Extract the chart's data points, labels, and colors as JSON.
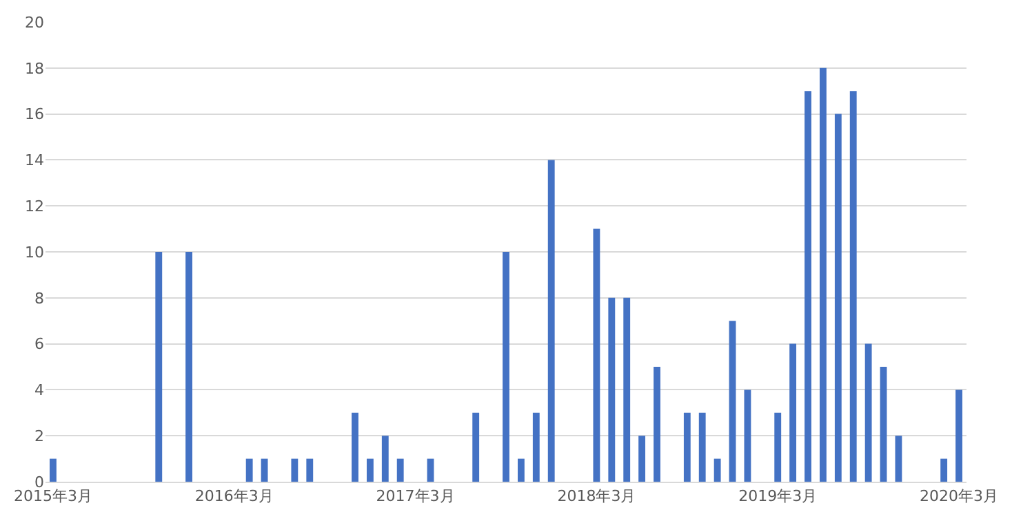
{
  "chart_data": {
    "type": "bar",
    "categories": [
      "2015年3月",
      null,
      null,
      null,
      null,
      null,
      null,
      null,
      null,
      null,
      null,
      null,
      "2016年3月",
      null,
      null,
      null,
      null,
      null,
      null,
      null,
      null,
      null,
      null,
      null,
      "2017年3月",
      null,
      null,
      null,
      null,
      null,
      null,
      null,
      null,
      null,
      null,
      null,
      "2018年3月",
      null,
      null,
      null,
      null,
      null,
      null,
      null,
      null,
      null,
      null,
      null,
      "2019年3月",
      null,
      null,
      null,
      null,
      null,
      null,
      null,
      null,
      null,
      null,
      null,
      "2020年3月"
    ],
    "values": [
      1,
      0,
      0,
      0,
      0,
      0,
      0,
      10,
      0,
      10,
      0,
      0,
      0,
      1,
      1,
      0,
      1,
      1,
      0,
      0,
      3,
      1,
      2,
      1,
      0,
      1,
      0,
      0,
      3,
      0,
      10,
      1,
      3,
      14,
      0,
      0,
      11,
      8,
      8,
      2,
      5,
      0,
      3,
      3,
      1,
      7,
      4,
      0,
      3,
      6,
      17,
      18,
      16,
      17,
      6,
      5,
      2,
      0,
      0,
      1,
      4
    ],
    "color": "#4472c4",
    "ylim": [
      0,
      20
    ],
    "yticks": [
      0,
      2,
      4,
      6,
      8,
      10,
      12,
      14,
      16,
      18,
      20
    ],
    "grid": "y"
  }
}
